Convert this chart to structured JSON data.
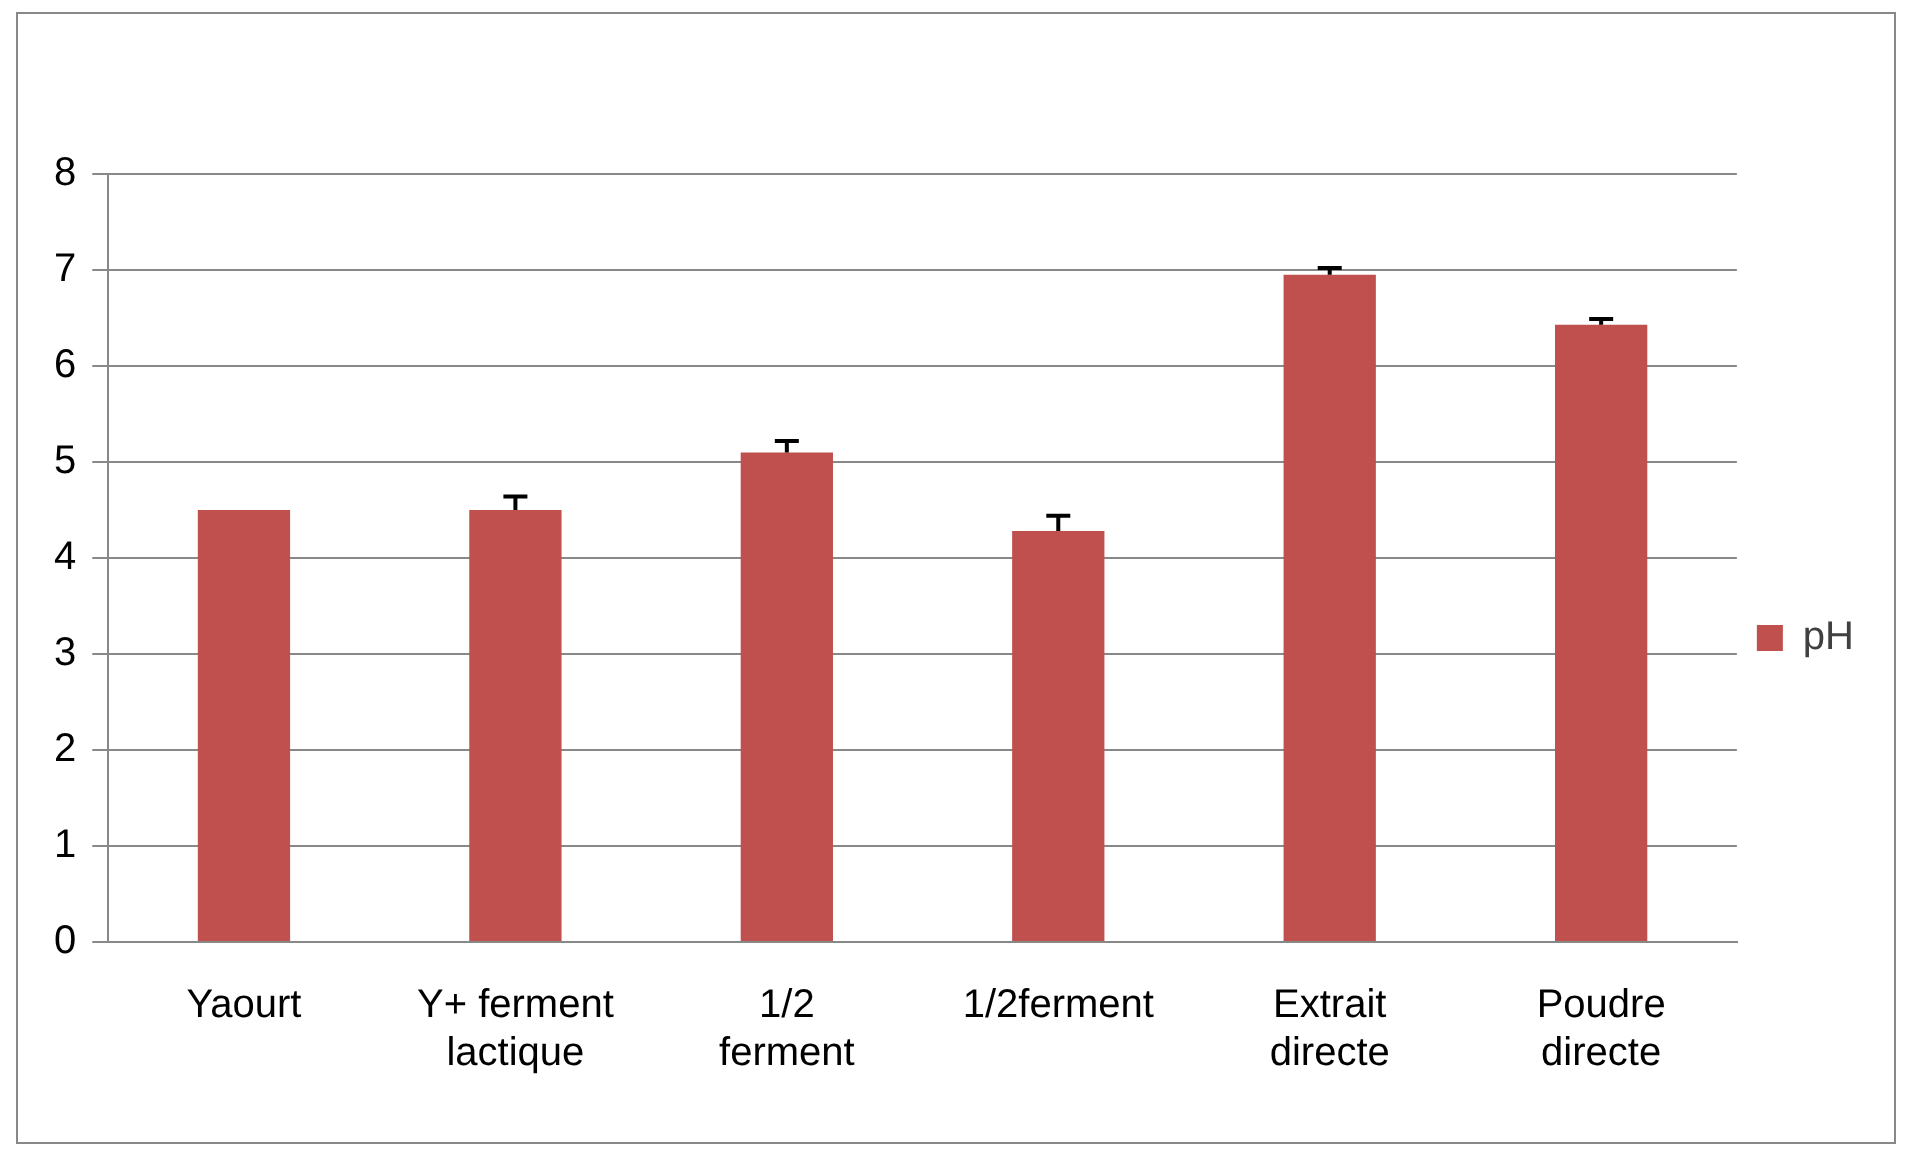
{
  "chart_data": {
    "type": "bar",
    "categories": [
      "Yaourt",
      "Y+ ferment lactique",
      "1/2 ferment",
      "1/2ferment",
      "Extrait directe",
      "Poudre directe"
    ],
    "series": [
      {
        "name": "pH",
        "color": "#c0504d",
        "values": [
          4.5,
          4.5,
          5.1,
          4.28,
          6.95,
          6.43
        ],
        "errors": [
          null,
          [
            4.5,
            4.64
          ],
          [
            5.1,
            5.22
          ],
          [
            4.28,
            4.44
          ],
          [
            6.95,
            7.02
          ],
          [
            6.43,
            6.49
          ]
        ]
      }
    ],
    "ylim": [
      0,
      8
    ],
    "yticks": [
      0,
      1,
      2,
      3,
      4,
      5,
      6,
      7,
      8
    ],
    "grid": "y",
    "legend": "right"
  }
}
